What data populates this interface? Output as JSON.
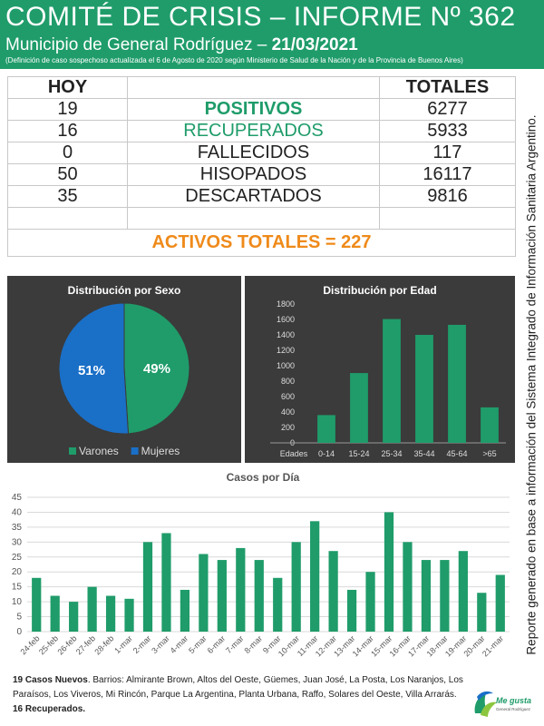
{
  "header": {
    "title": "COMITÉ DE CRISIS – INFORME Nº 362",
    "subtitle_prefix": "Municipio de General Rodríguez – ",
    "date": "21/03/2021",
    "note": "(Definición de caso sospechoso actualizada el 6 de Agosto de 2020 según Ministerio de Salud de la Nación y de la Provincia de Buenos Aires)"
  },
  "table": {
    "head_today": "HOY",
    "head_totals": "TOTALES",
    "rows": [
      {
        "today": "19",
        "label": "POSITIVOS",
        "total": "6277"
      },
      {
        "today": "16",
        "label": "RECUPERADOS",
        "total": "5933"
      },
      {
        "today": "0",
        "label": "FALLECIDOS",
        "total": "117"
      },
      {
        "today": "50",
        "label": "HISOPADOS",
        "total": "16117"
      },
      {
        "today": "35",
        "label": "DESCARTADOS",
        "total": "9816"
      }
    ],
    "activos": "ACTIVOS TOTALES = 227"
  },
  "colors": {
    "green": "#1f9c6a",
    "blue": "#1a6fc7",
    "orange": "#ef8a1a",
    "panel": "#3b3b3b"
  },
  "chart_data": [
    {
      "type": "pie",
      "title": "Distribución por Sexo",
      "labels": [
        "Varones",
        "Mujeres"
      ],
      "values": [
        49,
        51
      ],
      "value_labels": [
        "49%",
        "51%"
      ],
      "legend": "bottom"
    },
    {
      "type": "bar",
      "title": "Distribución por Edad",
      "xlabel": "Edades",
      "categories": [
        "0-14",
        "15-24",
        "25-34",
        "35-44",
        "45-64",
        ">65"
      ],
      "values": [
        360,
        905,
        1605,
        1400,
        1530,
        460
      ],
      "ylim": [
        0,
        1800
      ],
      "yticks": [
        0,
        200,
        400,
        600,
        800,
        1000,
        1200,
        1400,
        1600,
        1800
      ],
      "grid": false
    },
    {
      "type": "bar",
      "title": "Casos por Día",
      "categories": [
        "24-feb",
        "25-feb",
        "26-feb",
        "27-feb",
        "28-feb",
        "1-mar",
        "2-mar",
        "3-mar",
        "4-mar",
        "5-mar",
        "6-mar",
        "7-mar",
        "8-mar",
        "9-mar",
        "10-mar",
        "11-mar",
        "12-mar",
        "13-mar",
        "14-mar",
        "15-mar",
        "16-mar",
        "17-mar",
        "18-mar",
        "19-mar",
        "20-mar",
        "21-mar"
      ],
      "values": [
        18,
        12,
        10,
        15,
        12,
        11,
        30,
        33,
        14,
        26,
        24,
        28,
        24,
        18,
        30,
        37,
        27,
        14,
        20,
        40,
        30,
        24,
        24,
        27,
        13,
        19
      ],
      "ylim": [
        0,
        45
      ],
      "yticks": [
        0,
        5,
        10,
        15,
        20,
        25,
        30,
        35,
        40,
        45
      ],
      "grid": true
    }
  ],
  "footer": {
    "new_cases_bold": "19 Casos Nuevos",
    "new_cases_text": ". Barrios: Almirante Brown, Altos del Oeste, Güemes, Juan José, La Posta, Los Naranjos, Los Paraísos, Los Viveros, Mi Rincón, Parque La Argentina, Planta Urbana, Raffo, Solares del Oeste, Villa Arrarás.",
    "recovered": "16 Recuperados."
  },
  "side_text": "Reporte generado en base a información del Sistema Integrado de Información Sanitaria Argentino.",
  "logo": {
    "line1": "Me gusta",
    "line2": "General Rodríguez"
  }
}
